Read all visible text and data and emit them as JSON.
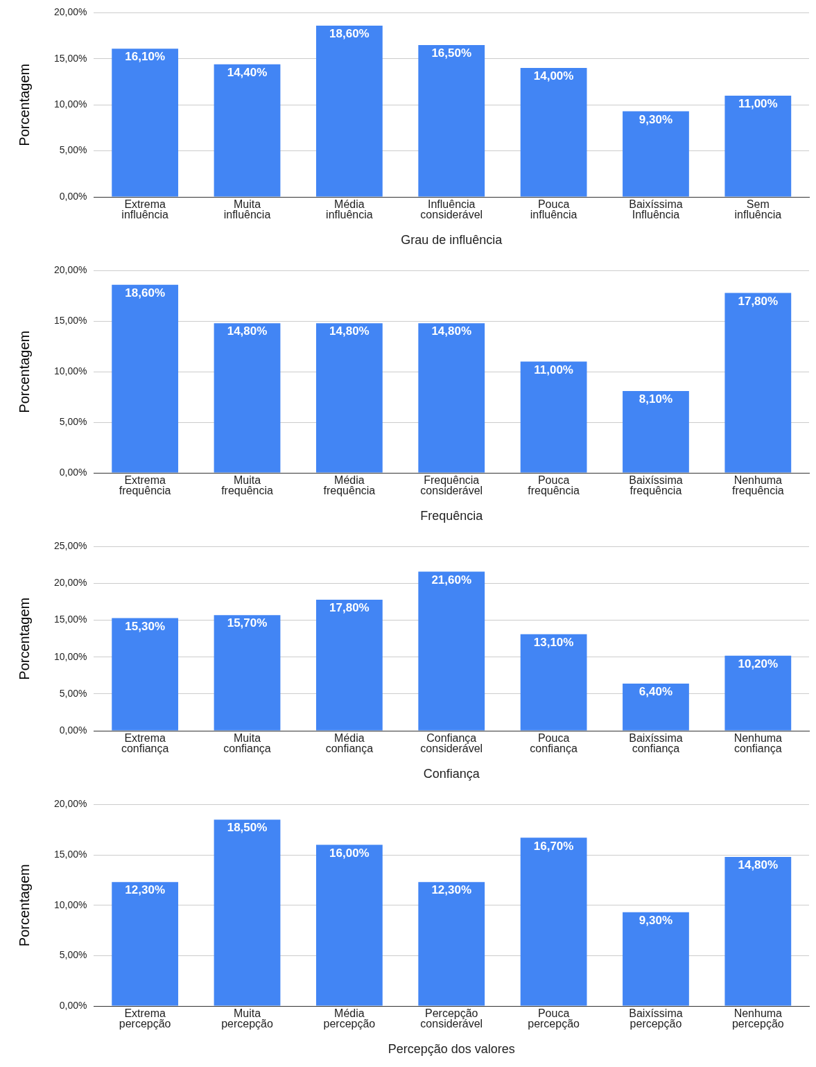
{
  "chart_data": [
    {
      "type": "bar",
      "xlabel": "Grau de influência",
      "ylabel": "Porcentagem",
      "categories": [
        "Extrema influência",
        "Muita influência",
        "Média influência",
        "Influência considerável",
        "Pouca influência",
        "Baixíssima Influência",
        "Sem influência"
      ],
      "values": [
        16.1,
        14.4,
        18.6,
        16.5,
        14.0,
        9.3,
        11.0
      ],
      "value_labels": [
        "16,10%",
        "14,40%",
        "18,60%",
        "16,50%",
        "14,00%",
        "9,30%",
        "11,00%"
      ],
      "color": "#4285f4",
      "ylim": [
        0,
        20
      ],
      "yticks": [
        {
          "value": 0,
          "label": "0,00%"
        },
        {
          "value": 5,
          "label": "5,00%"
        },
        {
          "value": 10,
          "label": "10,00%"
        },
        {
          "value": 15,
          "label": "15,00%"
        },
        {
          "value": 20,
          "label": "20,00%"
        }
      ],
      "grid": "y"
    },
    {
      "type": "bar",
      "xlabel": "Frequência",
      "ylabel": "Porcentagem",
      "categories": [
        "Extrema frequência",
        "Muita frequência",
        "Média frequência",
        "Frequência considerável",
        "Pouca frequência",
        "Baixíssima frequência",
        "Nenhuma frequência"
      ],
      "values": [
        18.6,
        14.8,
        14.8,
        14.8,
        11.0,
        8.1,
        17.8
      ],
      "value_labels": [
        "18,60%",
        "14,80%",
        "14,80%",
        "14,80%",
        "11,00%",
        "8,10%",
        "17,80%"
      ],
      "color": "#4285f4",
      "ylim": [
        0,
        20
      ],
      "yticks": [
        {
          "value": 0,
          "label": "0,00%"
        },
        {
          "value": 5,
          "label": "5,00%"
        },
        {
          "value": 10,
          "label": "10,00%"
        },
        {
          "value": 15,
          "label": "15,00%"
        },
        {
          "value": 20,
          "label": "20,00%"
        }
      ],
      "grid": "y"
    },
    {
      "type": "bar",
      "xlabel": "Confiança",
      "ylabel": "Porcentagem",
      "categories": [
        "Extrema confiança",
        "Muita confiança",
        "Média confiança",
        "Confiança considerável",
        "Pouca confiança",
        "Baixíssima confiança",
        "Nenhuma confiança"
      ],
      "values": [
        15.3,
        15.7,
        17.8,
        21.6,
        13.1,
        6.4,
        10.2
      ],
      "value_labels": [
        "15,30%",
        "15,70%",
        "17,80%",
        "21,60%",
        "13,10%",
        "6,40%",
        "10,20%"
      ],
      "color": "#4285f4",
      "ylim": [
        0,
        25
      ],
      "yticks": [
        {
          "value": 0,
          "label": "0,00%"
        },
        {
          "value": 5,
          "label": "5,00%"
        },
        {
          "value": 10,
          "label": "10,00%"
        },
        {
          "value": 15,
          "label": "15,00%"
        },
        {
          "value": 20,
          "label": "20,00%"
        },
        {
          "value": 25,
          "label": "25,00%"
        }
      ],
      "grid": "y"
    },
    {
      "type": "bar",
      "xlabel": "Percepção dos valores",
      "ylabel": "Porcentagem",
      "categories": [
        "Extrema percepção",
        "Muita percepção",
        "Média percepção",
        "Percepção considerável",
        "Pouca percepção",
        "Baixíssima percepção",
        "Nenhuma percepção"
      ],
      "values": [
        12.3,
        18.5,
        16.0,
        12.3,
        16.7,
        9.3,
        14.8
      ],
      "value_labels": [
        "12,30%",
        "18,50%",
        "16,00%",
        "12,30%",
        "16,70%",
        "9,30%",
        "14,80%"
      ],
      "color": "#4285f4",
      "ylim": [
        0,
        20
      ],
      "yticks": [
        {
          "value": 0,
          "label": "0,00%"
        },
        {
          "value": 5,
          "label": "5,00%"
        },
        {
          "value": 10,
          "label": "10,00%"
        },
        {
          "value": 15,
          "label": "15,00%"
        },
        {
          "value": 20,
          "label": "20,00%"
        }
      ],
      "grid": "y"
    }
  ]
}
